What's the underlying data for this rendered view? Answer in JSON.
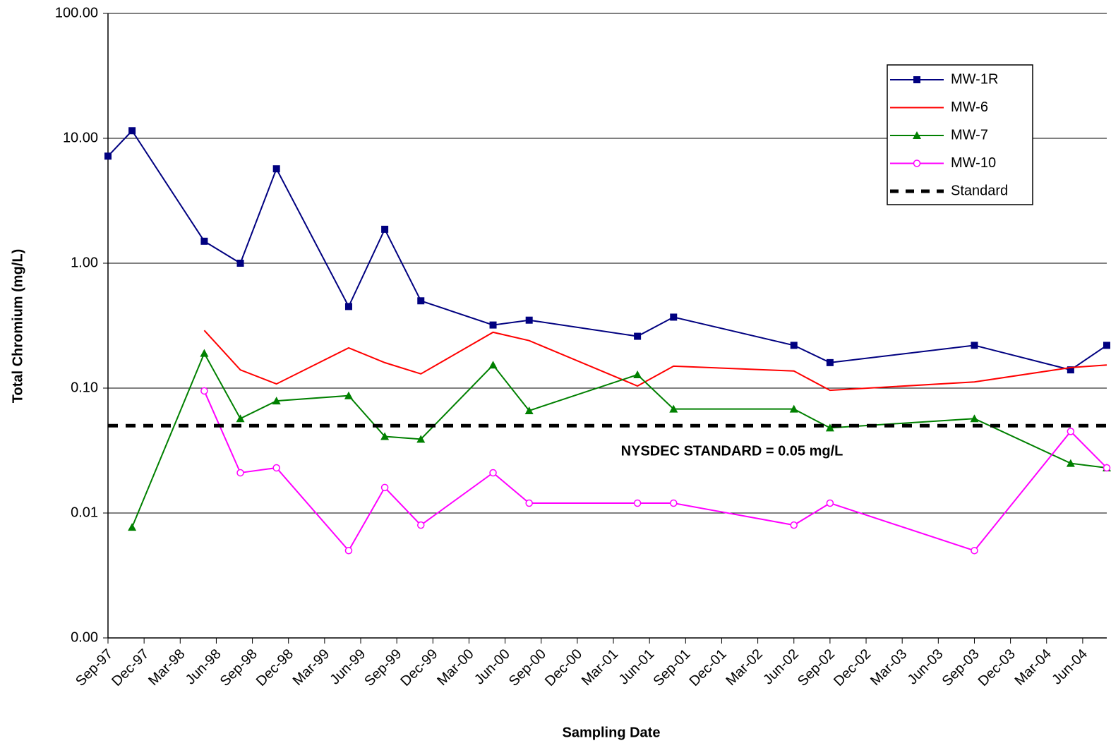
{
  "chart_data": {
    "type": "line",
    "y_label": "Total Chromium (mg/L)",
    "x_label": "Sampling Date",
    "annotation": "NYSDEC STANDARD = 0.05 mg/L",
    "log_y": true,
    "grid": true,
    "legend": "upper right",
    "x": [
      "1997-09",
      "1997-11",
      "1998-05",
      "1998-08",
      "1998-11",
      "1999-05",
      "1999-08",
      "1999-11",
      "2000-05",
      "2000-08",
      "2001-05",
      "2001-08",
      "2002-06",
      "2002-09",
      "2003-09",
      "2004-05",
      "2004-08"
    ],
    "series": [
      {
        "name": "MW-1R",
        "color": "#000080",
        "marker": "square",
        "values": [
          7.2,
          11.5,
          1.5,
          1.0,
          5.7,
          0.45,
          1.87,
          0.5,
          0.32,
          0.35,
          0.26,
          0.37,
          0.22,
          0.16,
          0.22,
          0.14,
          0.22
        ]
      },
      {
        "name": "MW-6",
        "color": "#ff0000",
        "marker": "none",
        "values": [
          null,
          null,
          0.29,
          0.14,
          0.108,
          0.21,
          0.16,
          0.13,
          0.28,
          0.24,
          0.104,
          0.15,
          0.137,
          0.096,
          0.112,
          0.146,
          0.153
        ]
      },
      {
        "name": "MW-7",
        "color": "#008000",
        "marker": "triangle",
        "values": [
          null,
          0.0077,
          0.19,
          0.057,
          0.079,
          0.087,
          0.041,
          0.039,
          0.153,
          0.066,
          0.128,
          0.068,
          0.068,
          0.048,
          0.057,
          0.025,
          0.023
        ]
      },
      {
        "name": "MW-10",
        "color": "#ff00ff",
        "marker": "circle",
        "values": [
          null,
          null,
          0.095,
          0.021,
          0.023,
          0.005,
          0.016,
          0.008,
          0.021,
          0.012,
          0.012,
          0.012,
          0.008,
          0.012,
          0.005,
          0.045,
          0.023
        ]
      },
      {
        "name": "Standard",
        "color": "#000000",
        "marker": "none",
        "dashed": true,
        "x": [
          "1997-09",
          "2004-08"
        ],
        "values": [
          0.05,
          0.05
        ]
      }
    ],
    "xlim": [
      "1997-09",
      "2004-08"
    ],
    "xticks": [
      {
        "value": "1997-09",
        "label": "Sep-97"
      },
      {
        "value": "1997-12",
        "label": "Dec-97"
      },
      {
        "value": "1998-03",
        "label": "Mar-98"
      },
      {
        "value": "1998-06",
        "label": "Jun-98"
      },
      {
        "value": "1998-09",
        "label": "Sep-98"
      },
      {
        "value": "1998-12",
        "label": "Dec-98"
      },
      {
        "value": "1999-03",
        "label": "Mar-99"
      },
      {
        "value": "1999-06",
        "label": "Jun-99"
      },
      {
        "value": "1999-09",
        "label": "Sep-99"
      },
      {
        "value": "1999-12",
        "label": "Dec-99"
      },
      {
        "value": "2000-03",
        "label": "Mar-00"
      },
      {
        "value": "2000-06",
        "label": "Jun-00"
      },
      {
        "value": "2000-09",
        "label": "Sep-00"
      },
      {
        "value": "2000-12",
        "label": "Dec-00"
      },
      {
        "value": "2001-03",
        "label": "Mar-01"
      },
      {
        "value": "2001-06",
        "label": "Jun-01"
      },
      {
        "value": "2001-09",
        "label": "Sep-01"
      },
      {
        "value": "2001-12",
        "label": "Dec-01"
      },
      {
        "value": "2002-03",
        "label": "Mar-02"
      },
      {
        "value": "2002-06",
        "label": "Jun-02"
      },
      {
        "value": "2002-09",
        "label": "Sep-02"
      },
      {
        "value": "2002-12",
        "label": "Dec-02"
      },
      {
        "value": "2003-03",
        "label": "Mar-03"
      },
      {
        "value": "2003-06",
        "label": "Jun-03"
      },
      {
        "value": "2003-09",
        "label": "Sep-03"
      },
      {
        "value": "2003-12",
        "label": "Dec-03"
      },
      {
        "value": "2004-03",
        "label": "Mar-04"
      },
      {
        "value": "2004-06",
        "label": "Jun-04"
      }
    ],
    "ylim": [
      0.001,
      100
    ],
    "yticks": [
      {
        "value": 0.001,
        "label": "0.00"
      },
      {
        "value": 0.01,
        "label": "0.01"
      },
      {
        "value": 0.1,
        "label": "0.10"
      },
      {
        "value": 1,
        "label": "1.00"
      },
      {
        "value": 10,
        "label": "10.00"
      },
      {
        "value": 100,
        "label": "100.00"
      }
    ]
  }
}
